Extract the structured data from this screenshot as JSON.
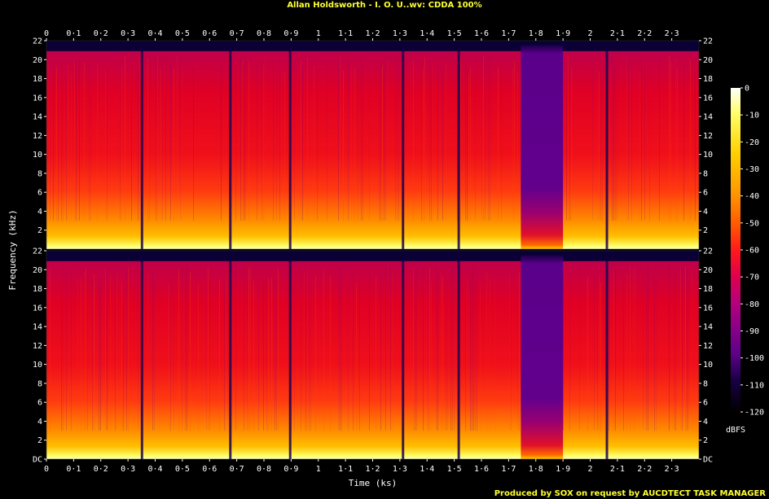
{
  "chart_data": {
    "type": "heatmap",
    "title": "Allan Holdsworth - I. O. U..wv: CDDA 100%",
    "xlabel": "Time (ks)",
    "ylabel": "Frequency (kHz)",
    "xlim": [
      0,
      2.4
    ],
    "ylim": [
      0,
      22
    ],
    "x_ticks": [
      "0",
      "0·1",
      "0·2",
      "0·3",
      "0·4",
      "0·5",
      "0·6",
      "0·7",
      "0·8",
      "0·9",
      "1",
      "1·1",
      "1·2",
      "1·3",
      "1·4",
      "1·5",
      "1·6",
      "1·7",
      "1·8",
      "1·9",
      "2",
      "2·1",
      "2·2",
      "2·3"
    ],
    "x_tick_values": [
      0,
      0.1,
      0.2,
      0.3,
      0.4,
      0.5,
      0.6,
      0.7,
      0.8,
      0.9,
      1.0,
      1.1,
      1.2,
      1.3,
      1.4,
      1.5,
      1.6,
      1.7,
      1.8,
      1.9,
      2.0,
      2.1,
      2.2,
      2.3
    ],
    "channels": [
      {
        "y_ticks": [
          "2",
          "4",
          "6",
          "8",
          "10",
          "12",
          "14",
          "16",
          "18",
          "20",
          "22"
        ],
        "y_tick_values": [
          2,
          4,
          6,
          8,
          10,
          12,
          14,
          16,
          18,
          20,
          22
        ]
      },
      {
        "y_ticks": [
          "DC",
          "2",
          "4",
          "6",
          "8",
          "10",
          "12",
          "14",
          "16",
          "18",
          "20",
          "22"
        ],
        "y_tick_values": [
          0,
          2,
          4,
          6,
          8,
          10,
          12,
          14,
          16,
          18,
          20,
          22
        ]
      }
    ],
    "colorbar": {
      "label": "dBFS",
      "ticks": [
        "0",
        "-10",
        "-20",
        "-30",
        "-40",
        "-50",
        "-60",
        "-70",
        "-80",
        "-90",
        "-100",
        "-110",
        "-120"
      ],
      "tick_values": [
        0,
        -10,
        -20,
        -30,
        -40,
        -50,
        -60,
        -70,
        -80,
        -90,
        -100,
        -110,
        -120
      ],
      "range": [
        -120,
        0
      ]
    },
    "quiet_intervals_ks": [
      [
        1.745,
        1.9
      ]
    ],
    "track_boundaries_ks": [
      0.35,
      0.675,
      0.895,
      1.31,
      1.515,
      2.06
    ]
  },
  "colors": {
    "background": "#000000",
    "title": "#ffff33",
    "palette": [
      "#000000",
      "#06001e",
      "#1a0048",
      "#3a0072",
      "#5e0088",
      "#8a0088",
      "#b8007a",
      "#e0004a",
      "#ff1a1a",
      "#ff5a00",
      "#ff9a00",
      "#ffd000",
      "#ffff66",
      "#ffffff"
    ]
  },
  "footer": "Produced by SOX on request by AUCDTECT TASK MANAGER"
}
